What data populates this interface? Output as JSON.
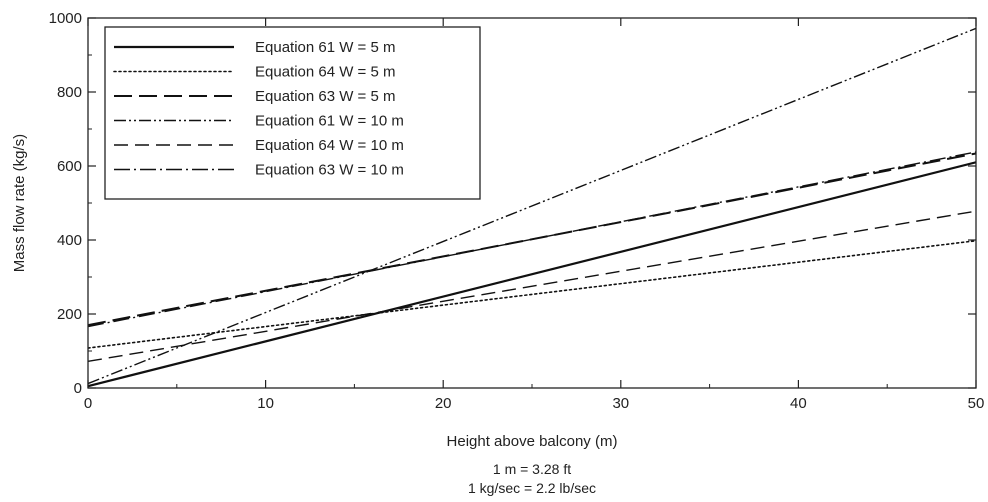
{
  "chart_data": {
    "type": "line",
    "title": "",
    "xlabel": "Height above balcony (m)",
    "ylabel": "Mass flow rate (kg/s)",
    "xlim": [
      0,
      50
    ],
    "ylim": [
      0,
      1000
    ],
    "x_ticks": [
      0,
      10,
      20,
      30,
      40,
      50
    ],
    "y_ticks": [
      0,
      200,
      400,
      600,
      800,
      1000
    ],
    "grid": false,
    "legend_position": "top-left",
    "series": [
      {
        "name": "Equation 61 W = 5 m",
        "style": "solid",
        "color": "#111111",
        "x": [
          0,
          50
        ],
        "y": [
          5,
          610
        ]
      },
      {
        "name": "Equation 64 W = 5 m",
        "style": "dotted",
        "color": "#111111",
        "x": [
          0,
          50
        ],
        "y": [
          108,
          398
        ]
      },
      {
        "name": "Equation 63 W = 5 m",
        "style": "long-dash",
        "color": "#111111",
        "x": [
          0,
          50
        ],
        "y": [
          170,
          634
        ]
      },
      {
        "name": "Equation 61 W = 10 m",
        "style": "dash-dot-dot",
        "color": "#111111",
        "x": [
          0,
          50
        ],
        "y": [
          12,
          972
        ]
      },
      {
        "name": "Equation 64 W = 10 m",
        "style": "dash",
        "color": "#111111",
        "x": [
          0,
          50
        ],
        "y": [
          72,
          478
        ]
      },
      {
        "name": "Equation 63 W = 10 m",
        "style": "dash-dot",
        "color": "#111111",
        "x": [
          0,
          50
        ],
        "y": [
          166,
          638
        ]
      }
    ],
    "notes": [
      "1 m = 3.28 ft",
      "1 kg/sec = 2.2 lb/sec"
    ]
  }
}
